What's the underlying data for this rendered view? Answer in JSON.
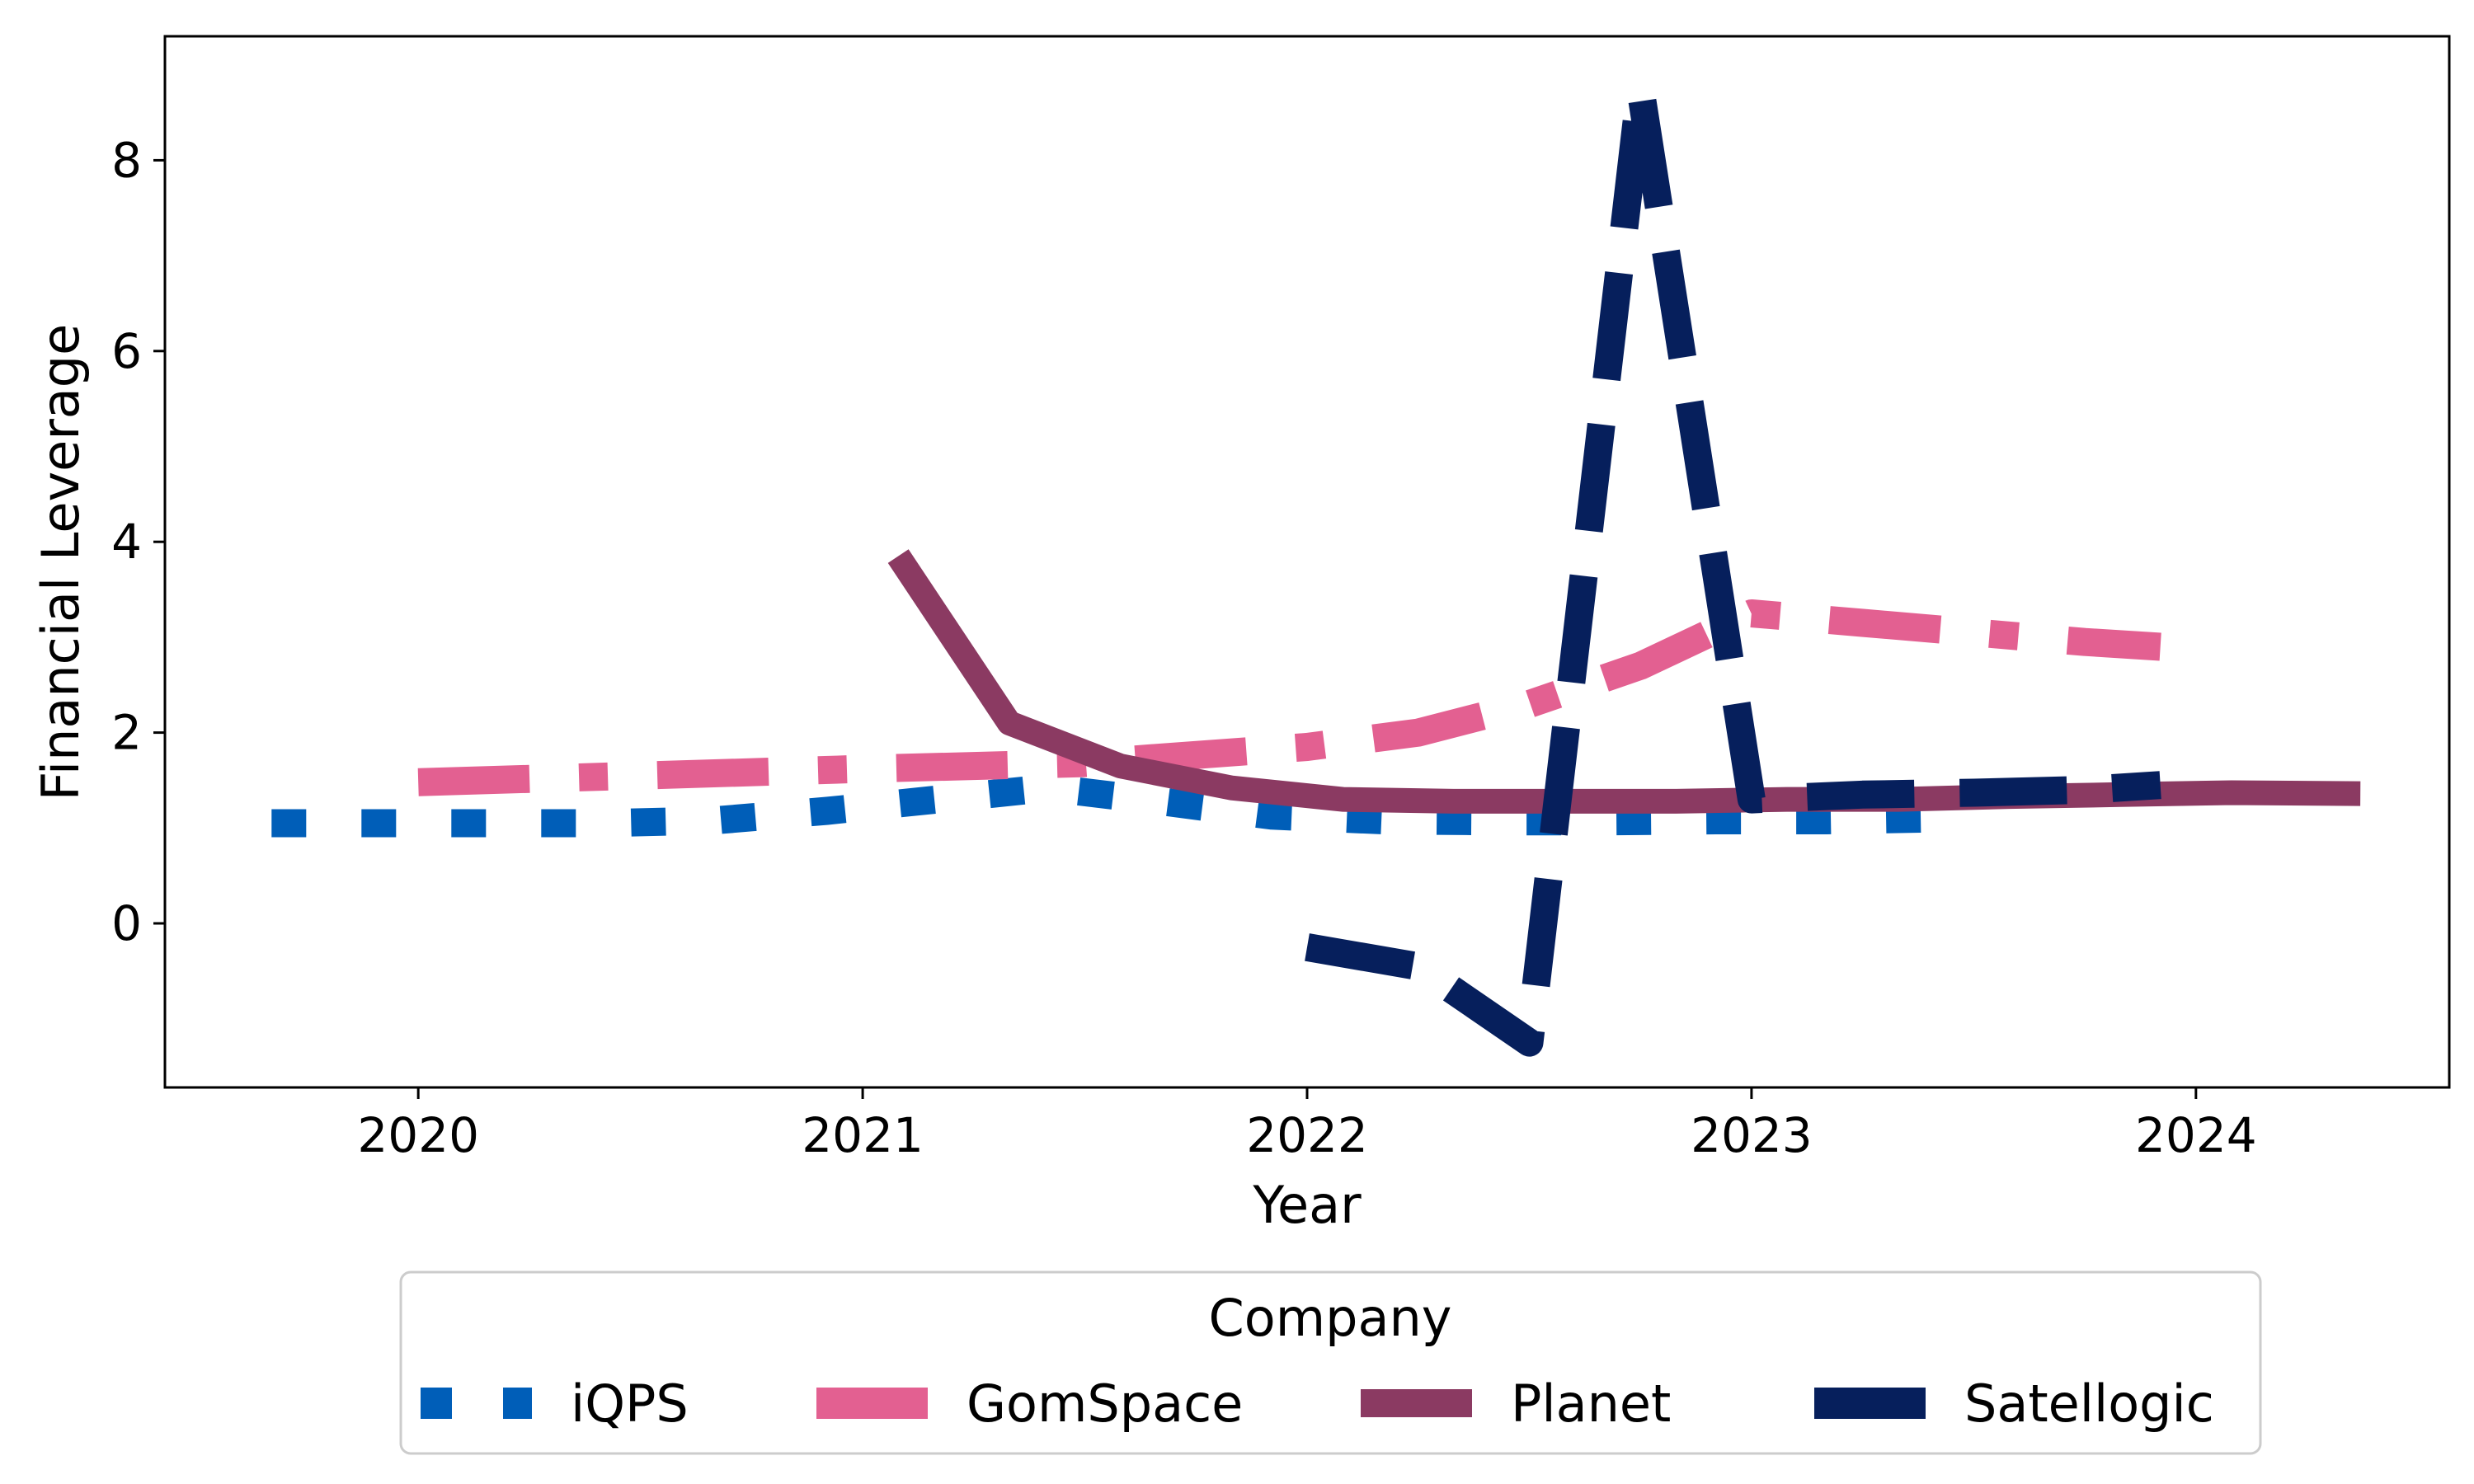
{
  "chart_data": {
    "type": "line",
    "title": "",
    "xlabel": "Year",
    "ylabel": "Financial Leverage",
    "xlim": [
      2019.43,
      2024.57
    ],
    "ylim": [
      -1.72,
      9.3
    ],
    "x_ticks": [
      2020,
      2021,
      2022,
      2023,
      2024
    ],
    "y_ticks": [
      0,
      2,
      4,
      6,
      8
    ],
    "grid": false,
    "legend": {
      "title": "Company",
      "placement": "bottom-center",
      "entries": [
        "iQPS",
        "GomSpace",
        "Planet",
        "Satellogic"
      ]
    },
    "series": [
      {
        "name": "iQPS",
        "color": "#005eb8",
        "style": "dotted",
        "x": [
          2019.67,
          2019.92,
          2020.17,
          2020.42,
          2020.67,
          2020.92,
          2021.17,
          2021.42,
          2021.67,
          2021.92,
          2022.17,
          2022.42,
          2022.67,
          2022.92,
          2023.17,
          2023.42
        ],
        "y": [
          1.05,
          1.05,
          1.05,
          1.05,
          1.08,
          1.18,
          1.3,
          1.42,
          1.28,
          1.13,
          1.08,
          1.07,
          1.07,
          1.08,
          1.08,
          1.1
        ]
      },
      {
        "name": "GomSpace",
        "color": "#e36091",
        "style": "dashdot",
        "x": [
          2020.0,
          2020.5,
          2021.0,
          2021.5,
          2022.0,
          2022.25,
          2022.5,
          2022.75,
          2023.0,
          2023.25,
          2023.5,
          2023.75,
          2023.92
        ],
        "y": [
          1.48,
          1.55,
          1.62,
          1.68,
          1.85,
          2.0,
          2.3,
          2.7,
          3.25,
          3.15,
          3.05,
          2.95,
          2.9
        ]
      },
      {
        "name": "Planet",
        "color": "#8b3a62",
        "style": "solid",
        "x": [
          2021.08,
          2021.33,
          2021.58,
          2021.83,
          2022.08,
          2022.33,
          2022.58,
          2022.83,
          2023.08,
          2023.33,
          2023.58,
          2023.83,
          2024.08,
          2024.37
        ],
        "y": [
          3.85,
          2.1,
          1.65,
          1.42,
          1.3,
          1.28,
          1.28,
          1.28,
          1.3,
          1.3,
          1.33,
          1.35,
          1.37,
          1.36
        ]
      },
      {
        "name": "Satellogic",
        "color": "#061f5c",
        "style": "dashed",
        "x": [
          2022.0,
          2022.25,
          2022.5,
          2022.75,
          2023.0,
          2023.25,
          2023.5,
          2023.75,
          2023.92
        ],
        "y": [
          -0.25,
          -0.45,
          -1.25,
          8.75,
          1.3,
          1.35,
          1.37,
          1.4,
          1.45
        ]
      }
    ]
  }
}
